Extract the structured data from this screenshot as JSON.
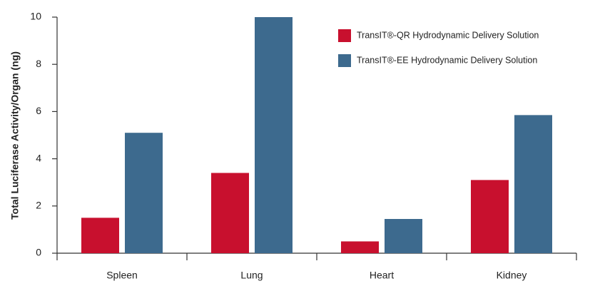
{
  "chart_data": {
    "type": "bar",
    "y_label": "Total Luciferase Activity/Organ (ng)",
    "categories": [
      "Spleen",
      "Lung",
      "Heart",
      "Kidney"
    ],
    "series": [
      {
        "name": "TransIT®-QR Hydrodynamic Delivery Solution",
        "color": "#c8102e",
        "values": [
          1.5,
          3.4,
          0.5,
          3.1
        ]
      },
      {
        "name": "TransIT®-EE Hydrodynamic Delivery Solution",
        "color": "#3d6a8e",
        "values": [
          5.1,
          10,
          1.45,
          5.85
        ]
      }
    ],
    "ylim": [
      0,
      10
    ],
    "yticks": [
      0,
      2,
      4,
      6,
      8,
      10
    ],
    "legend": "top-right"
  }
}
